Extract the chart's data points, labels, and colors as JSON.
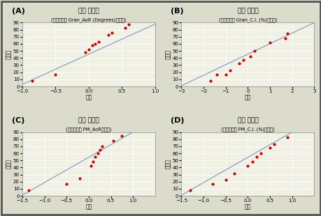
{
  "title": "정규 확률도",
  "xlabel": "잔차",
  "ylabel": "백분율",
  "background_color": "#dcdccc",
  "plot_bg": "#f0f0e4",
  "subplots": [
    {
      "label": "A",
      "subtitle": "(반응변수가 Gran_AoR (Degrees)입니다)",
      "xlim": [
        -1.0,
        1.0
      ],
      "ylim": [
        0,
        90
      ],
      "yticks": [
        0,
        10,
        20,
        30,
        40,
        50,
        60,
        70,
        80,
        90
      ],
      "xticks": [
        -1.0,
        -0.5,
        0.0,
        0.5,
        1.0
      ],
      "line_x": [
        -1.0,
        1.0
      ],
      "line_y": [
        3,
        88
      ],
      "points_x": [
        -0.85,
        -0.5,
        -0.05,
        0.0,
        0.05,
        0.1,
        0.15,
        0.3,
        0.35,
        0.55,
        0.6
      ],
      "points_y": [
        8,
        17,
        48,
        52,
        58,
        60,
        63,
        73,
        76,
        83,
        87
      ]
    },
    {
      "label": "B",
      "subtitle": "(반응변수가 Gran_C.I. (%)입니다)",
      "xlim": [
        -3,
        3
      ],
      "ylim": [
        0,
        90
      ],
      "yticks": [
        0,
        10,
        20,
        30,
        40,
        50,
        60,
        70,
        80,
        90
      ],
      "xticks": [
        -3,
        -2,
        -1,
        0,
        1,
        2,
        3
      ],
      "line_x": [
        -3,
        3
      ],
      "line_y": [
        1,
        90
      ],
      "points_x": [
        -1.7,
        -1.4,
        -1.0,
        -0.8,
        -0.4,
        -0.2,
        0.1,
        0.3,
        1.0,
        1.7,
        1.8
      ],
      "points_y": [
        8,
        17,
        17,
        23,
        32,
        37,
        42,
        50,
        62,
        68,
        75
      ]
    },
    {
      "label": "C",
      "subtitle": "(반응변수가 PM_AoR입니다)",
      "xlim": [
        -1.5,
        1.5
      ],
      "ylim": [
        0,
        90
      ],
      "yticks": [
        0,
        10,
        20,
        30,
        40,
        50,
        60,
        70,
        80,
        90
      ],
      "xticks": [
        -1.5,
        -1.0,
        -0.5,
        0.0,
        0.5,
        1.0
      ],
      "line_x": [
        -1.5,
        1.0
      ],
      "line_y": [
        1,
        90
      ],
      "points_x": [
        -1.35,
        -0.5,
        -0.2,
        0.05,
        0.1,
        0.15,
        0.2,
        0.25,
        0.3,
        0.55,
        0.75
      ],
      "points_y": [
        8,
        17,
        25,
        42,
        48,
        55,
        60,
        65,
        70,
        78,
        85
      ]
    },
    {
      "label": "D",
      "subtitle": "(반응변수가 PM_C.I. (%)입니다)",
      "xlim": [
        -1.5,
        1.5
      ],
      "ylim": [
        0,
        90
      ],
      "yticks": [
        0,
        10,
        20,
        30,
        40,
        50,
        60,
        70,
        80,
        90
      ],
      "xticks": [
        -1.5,
        -1.0,
        -0.5,
        0.0,
        0.5,
        1.0
      ],
      "line_x": [
        -1.5,
        1.0
      ],
      "line_y": [
        1,
        90
      ],
      "points_x": [
        -1.3,
        -0.8,
        -0.5,
        -0.3,
        0.0,
        0.1,
        0.2,
        0.3,
        0.5,
        0.6,
        0.9
      ],
      "points_y": [
        8,
        17,
        23,
        32,
        42,
        48,
        55,
        60,
        68,
        73,
        83
      ]
    }
  ],
  "dot_color": "#cc0000",
  "line_color": "#7799bb",
  "title_fontsize": 6.5,
  "subtitle_fontsize": 4.8,
  "tick_fontsize": 5.0,
  "label_fontsize": 5.5,
  "panel_label_fontsize": 8
}
